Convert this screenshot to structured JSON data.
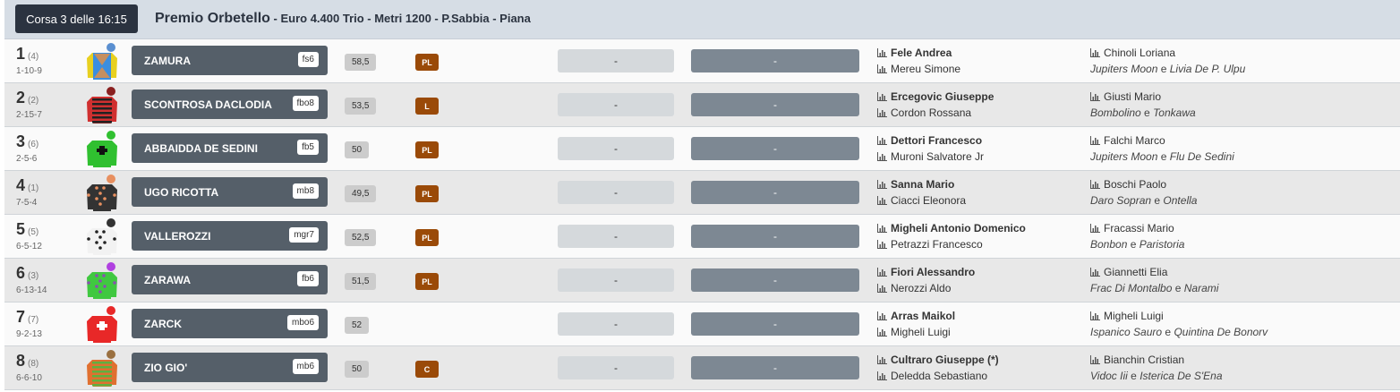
{
  "race": {
    "label": "Corsa 3 delle 16:15",
    "name": "Premio Orbetello",
    "details": " - Euro 4.400 Trio - Metri 1200 - P.Sabbia - Piana"
  },
  "colors": {
    "header_bg": "#d6dde5",
    "race_button": "#2b3340",
    "horse_box": "#555f69",
    "badge": "#9a4a08"
  },
  "runners": [
    {
      "num": "1",
      "stall": "(4)",
      "form": "1-10-9",
      "horse": "ZAMURA",
      "equip": "fs6",
      "weight": "58,5",
      "badge": "PL",
      "odds1": "-",
      "odds2": "-",
      "jockey": "Fele Andrea",
      "owner": "Mereu Simone",
      "trainer": "Chinoli Loriana",
      "sire": "Jupiters Moon",
      "dam": "Livia De P. Ulpu",
      "jersey": {
        "body": "#3a8ee0",
        "sleeve": "#e8d020",
        "cap": "#5a8fd0",
        "pattern": "cross",
        "accent": "#e89040"
      }
    },
    {
      "num": "2",
      "stall": "(2)",
      "form": "2-15-7",
      "horse": "SCONTROSA DACLODIA",
      "equip": "fbo8",
      "weight": "53,5",
      "badge": "L",
      "odds1": "-",
      "odds2": "-",
      "jockey": "Ercegovic Giuseppe",
      "owner": "Cordon Rossana",
      "trainer": "Giusti Mario",
      "sire": "Bombolino",
      "dam": "Tonkawa",
      "jersey": {
        "body": "#d03030",
        "sleeve": "#d03030",
        "cap": "#8a2020",
        "pattern": "hoops",
        "accent": "#222222"
      }
    },
    {
      "num": "3",
      "stall": "(6)",
      "form": "2-5-6",
      "horse": "ABBAIDDA DE SEDINI",
      "equip": "fb5",
      "weight": "50",
      "badge": "PL",
      "odds1": "-",
      "odds2": "-",
      "jockey": "Dettori Francesco",
      "owner": "Muroni Salvatore Jr",
      "trainer": "Falchi Marco",
      "sire": "Jupiters Moon",
      "dam": "Flu De Sedini",
      "jersey": {
        "body": "#30c030",
        "sleeve": "#30c030",
        "cap": "#30c030",
        "pattern": "emblem",
        "accent": "#111111"
      }
    },
    {
      "num": "4",
      "stall": "(1)",
      "form": "7-5-4",
      "horse": "UGO RICOTTA",
      "equip": "mb8",
      "weight": "49,5",
      "badge": "PL",
      "odds1": "-",
      "odds2": "-",
      "jockey": "Sanna Mario",
      "owner": "Ciacci Eleonora",
      "trainer": "Boschi Paolo",
      "sire": "Daro Sopran",
      "dam": "Ontella",
      "jersey": {
        "body": "#333333",
        "sleeve": "#333333",
        "cap": "#e89060",
        "pattern": "dots",
        "accent": "#e89060"
      }
    },
    {
      "num": "5",
      "stall": "(5)",
      "form": "6-5-12",
      "horse": "VALLEROZZI",
      "equip": "mgr7",
      "weight": "52,5",
      "badge": "PL",
      "odds1": "-",
      "odds2": "-",
      "jockey": "Migheli Antonio Domenico",
      "owner": "Petrazzi Francesco",
      "trainer": "Fracassi Mario",
      "sire": "Bonbon",
      "dam": "Paristoria",
      "jersey": {
        "body": "#f2f2f2",
        "sleeve": "#f2f2f2",
        "cap": "#333333",
        "pattern": "dots",
        "accent": "#222222"
      }
    },
    {
      "num": "6",
      "stall": "(3)",
      "form": "6-13-14",
      "horse": "ZARAWA",
      "equip": "fb6",
      "weight": "51,5",
      "badge": "PL",
      "odds1": "-",
      "odds2": "-",
      "jockey": "Fiori Alessandro",
      "owner": "Nerozzi Aldo",
      "trainer": "Giannetti Elia",
      "sire": "Frac Di Montalbo",
      "dam": "Narami",
      "jersey": {
        "body": "#40c840",
        "sleeve": "#40c840",
        "cap": "#b040e0",
        "pattern": "dots",
        "accent": "#8a50b0"
      }
    },
    {
      "num": "7",
      "stall": "(7)",
      "form": "9-2-13",
      "horse": "ZARCK",
      "equip": "mbo6",
      "weight": "52",
      "badge": "",
      "odds1": "-",
      "odds2": "-",
      "jockey": "Arras Maikol",
      "owner": "Migheli Luigi",
      "trainer": "Migheli Luigi",
      "sire": "Ispanico Sauro",
      "dam": "Quintina De Bonorv",
      "jersey": {
        "body": "#e82828",
        "sleeve": "#e82828",
        "cap": "#e82828",
        "pattern": "emblem",
        "accent": "#ffffff"
      }
    },
    {
      "num": "8",
      "stall": "(8)",
      "form": "6-6-10",
      "horse": "ZIO GIO'",
      "equip": "mb6",
      "weight": "50",
      "badge": "C",
      "odds1": "-",
      "odds2": "-",
      "jockey": "Cultraro Giuseppe (*)",
      "owner": "Deledda Sebastiano",
      "trainer": "Bianchin Cristian",
      "sire": "Vidoc Iii",
      "dam": "Isterica De S'Ena",
      "jersey": {
        "body": "#e07030",
        "sleeve": "#e07030",
        "cap": "#9a7040",
        "pattern": "hoops",
        "accent": "#60b040"
      }
    }
  ],
  "connector": "e",
  "icons": {
    "stats": "bar-chart-icon"
  }
}
